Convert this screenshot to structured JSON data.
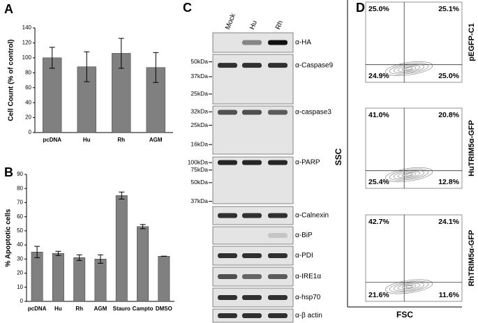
{
  "chart_data": [
    {
      "type": "bar",
      "label": "A",
      "ylabel": "Cell Count (% of control)",
      "categories": [
        "pcDNA",
        "Hu",
        "Rh",
        "AGM"
      ],
      "values": [
        100,
        88,
        106,
        87
      ],
      "errors": [
        14,
        20,
        20,
        20
      ],
      "color": "#808080",
      "ylim": [
        0,
        140
      ],
      "yticks": [
        0,
        20,
        40,
        60,
        80,
        100,
        120,
        140
      ]
    },
    {
      "type": "bar",
      "label": "B",
      "ylabel": "% Apoptotic cells",
      "categories": [
        "pcDNA",
        "Hu",
        "Rh",
        "AGM",
        "Stauro",
        "Campto",
        "DMSO"
      ],
      "values": [
        35,
        34,
        31,
        30,
        75,
        53,
        32
      ],
      "errors": [
        4,
        1.5,
        2,
        3,
        2.5,
        1.5,
        0
      ],
      "color": "#808080",
      "ylim": [
        0,
        90
      ],
      "yticks": [
        0,
        10,
        20,
        30,
        40,
        50,
        60,
        70,
        80,
        90
      ]
    }
  ],
  "blot": {
    "label": "C",
    "lanes": [
      "Mock",
      "Hu",
      "Rh"
    ],
    "panels": [
      {
        "antibody": "α-HA"
      },
      {
        "antibody": "α-Caspase9",
        "markers": [
          "50kDa",
          "37kDa",
          "25kDa"
        ]
      },
      {
        "antibody": "α-caspase3",
        "markers": [
          "32kDa",
          "25kDa",
          "16kDa"
        ]
      },
      {
        "antibody": "α-PARP",
        "markers": [
          "100kDa",
          "75kDa",
          "50kDa",
          "37kDa"
        ]
      },
      {
        "antibody": "α-Calnexin"
      },
      {
        "antibody": "α-BiP"
      },
      {
        "antibody": "α-PDI"
      },
      {
        "antibody": "α-IRE1α"
      },
      {
        "antibody": "α-hsp70"
      },
      {
        "antibody": "α-β actin"
      }
    ]
  },
  "flow": {
    "label": "D",
    "ylabel": "SSC",
    "xlabel": "FSC",
    "plots": [
      {
        "name": "pEGFP-C1",
        "quadrants": [
          "25.0%",
          "25.1%",
          "24.9%",
          "25.0%"
        ]
      },
      {
        "name": "HuTRIM5α-GFP",
        "quadrants": [
          "41.0%",
          "20.8%",
          "25.4%",
          "12.8%"
        ]
      },
      {
        "name": "RhTRIM5α-GFP",
        "quadrants": [
          "42.7%",
          "24.1%",
          "21.6%",
          "11.6%"
        ]
      }
    ]
  }
}
